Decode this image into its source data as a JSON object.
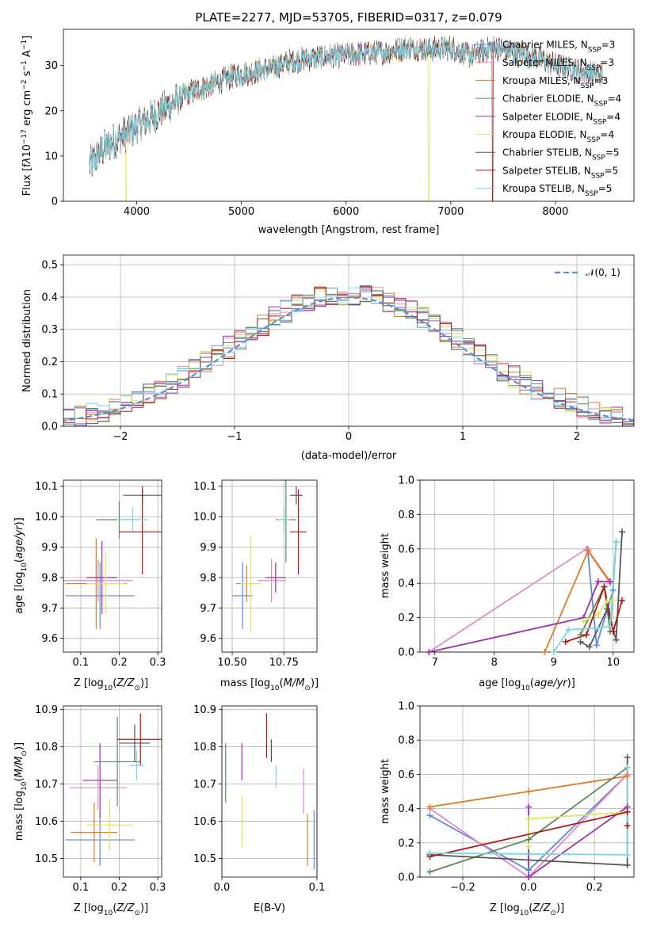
{
  "series_styles": [
    {
      "name": "Chabrier MILES",
      "nssp": "3",
      "color": "#5b8bd9"
    },
    {
      "name": "Salpeter MILES",
      "nssp": "3",
      "color": "#e887c3"
    },
    {
      "name": "Kroupa MILES",
      "nssp": "3",
      "color": "#e07b20"
    },
    {
      "name": "Chabrier ELODIE",
      "nssp": "4",
      "color": "#5a8a5a"
    },
    {
      "name": "Salpeter ELODIE",
      "nssp": "4",
      "color": "#9b2fb0"
    },
    {
      "name": "Kroupa ELODIE",
      "nssp": "4",
      "color": "#dde65a"
    },
    {
      "name": "Chabrier STELIB",
      "nssp": "5",
      "color": "#555555"
    },
    {
      "name": "Salpeter STELIB",
      "nssp": "5",
      "color": "#b01515"
    },
    {
      "name": "Kroupa STELIB",
      "nssp": "5",
      "color": "#79d6e0"
    }
  ],
  "chart_data": [
    {
      "id": "spectrum",
      "type": "line",
      "title": "PLATE=2277, MJD=53705, FIBERID=0317, z=0.079",
      "xlabel": "wavelength [Angstrom, rest frame]",
      "ylabel_parts": [
        "Flux [f",
        "λ",
        "10",
        "−17",
        " erg cm",
        "−2",
        " s",
        "−1",
        " A",
        "−1",
        "]"
      ],
      "xlim": [
        3300,
        8750
      ],
      "ylim": [
        0,
        38
      ],
      "xticks": [
        4000,
        5000,
        6000,
        7000,
        8000
      ],
      "yticks": [
        0,
        10,
        20,
        30
      ],
      "grid": false,
      "legend_position": "right",
      "continuum_points": [
        [
          3550,
          8
        ],
        [
          3700,
          12
        ],
        [
          3900,
          15
        ],
        [
          4100,
          18
        ],
        [
          4300,
          21
        ],
        [
          4500,
          24
        ],
        [
          4700,
          25.5
        ],
        [
          4900,
          27.5
        ],
        [
          5100,
          28.5
        ],
        [
          5300,
          29.5
        ],
        [
          5500,
          31
        ],
        [
          5800,
          32
        ],
        [
          6100,
          32.5
        ],
        [
          6400,
          33
        ],
        [
          6600,
          34
        ],
        [
          6800,
          33.5
        ],
        [
          7000,
          34
        ],
        [
          7200,
          32
        ],
        [
          7400,
          34
        ],
        [
          7600,
          33
        ],
        [
          7800,
          32
        ],
        [
          8000,
          30
        ],
        [
          8200,
          29
        ],
        [
          8400,
          28
        ]
      ],
      "dropouts": [
        {
          "series": "Kroupa ELODIE",
          "x": 3900
        },
        {
          "series": "Kroupa ELODIE",
          "x": 6790
        },
        {
          "series": "Salpeter STELIB",
          "x": 7400
        }
      ]
    },
    {
      "id": "residuals",
      "type": "histogram",
      "xlabel": "(data-model)/error",
      "ylabel": "Normed distribution",
      "xlim": [
        -2.5,
        2.5
      ],
      "ylim": [
        0,
        0.53
      ],
      "xticks": [
        -2,
        -1,
        0,
        1,
        2
      ],
      "yticks": [
        0.0,
        0.1,
        0.2,
        0.3,
        0.4,
        0.5
      ],
      "grid": true,
      "bin_width": 0.1,
      "reference": {
        "name": "𝒩(0, 1)",
        "mean": 0,
        "sigma": 1,
        "color": "#5b8bd9"
      },
      "legend_position": "top-right"
    },
    {
      "id": "age_vs_z",
      "type": "errorbar",
      "xlabel": "Z [log10(Z/Z⊙)]",
      "ylabel": "age  [log10(age/yr)]",
      "xlim": [
        0.055,
        0.31
      ],
      "ylim": [
        9.555,
        10.12
      ],
      "xticks": [
        0.1,
        0.2,
        0.3
      ],
      "yticks": [
        9.6,
        9.7,
        9.8,
        9.9,
        10.0,
        10.1
      ],
      "grid": true,
      "points": [
        {
          "series": "Chabrier MILES",
          "x": 0.15,
          "y": 9.74,
          "xerr": 0.09,
          "yerr": 0.11
        },
        {
          "series": "Salpeter MILES",
          "x": 0.145,
          "y": 9.79,
          "xerr": 0.09,
          "yerr": 0.07
        },
        {
          "series": "Kroupa MILES",
          "x": 0.14,
          "y": 9.78,
          "xerr": 0.08,
          "yerr": 0.15
        },
        {
          "series": "Chabrier ELODIE",
          "x": 0.2,
          "y": 9.99,
          "xerr": 0.06,
          "yerr": 0.06
        },
        {
          "series": "Salpeter ELODIE",
          "x": 0.155,
          "y": 9.8,
          "xerr": 0.04,
          "yerr": 0.12
        },
        {
          "series": "Kroupa ELODIE",
          "x": 0.165,
          "y": 9.78,
          "xerr": 0.05,
          "yerr": 0.1
        },
        {
          "series": "Chabrier STELIB",
          "x": 0.26,
          "y": 10.07,
          "xerr": 0.05,
          "yerr": 0.03
        },
        {
          "series": "Salpeter STELIB",
          "x": 0.26,
          "y": 9.95,
          "xerr": 0.06,
          "yerr": 0.14
        },
        {
          "series": "Kroupa STELIB",
          "x": 0.235,
          "y": 9.99,
          "xerr": 0.04,
          "yerr": 0.04
        }
      ]
    },
    {
      "id": "age_vs_mass",
      "type": "errorbar",
      "xlabel": "mass [log10(M/M⊙)]",
      "ylabel": "",
      "xlim": [
        10.45,
        10.91
      ],
      "ylim": [
        9.555,
        10.12
      ],
      "xticks": [
        10.5,
        10.75
      ],
      "yticks": [
        9.6,
        9.7,
        9.8,
        9.9,
        10.0,
        10.1
      ],
      "grid": true,
      "points": [
        {
          "series": "Chabrier MILES",
          "x": 10.55,
          "y": 9.74,
          "xerr": 0.05,
          "yerr": 0.11
        },
        {
          "series": "Salpeter MILES",
          "x": 10.69,
          "y": 9.79,
          "xerr": 0.07,
          "yerr": 0.07
        },
        {
          "series": "Kroupa MILES",
          "x": 10.57,
          "y": 9.78,
          "xerr": 0.05,
          "yerr": 0.06
        },
        {
          "series": "Chabrier ELODIE",
          "x": 10.76,
          "y": 9.99,
          "xerr": 0.05,
          "yerr": 0.14
        },
        {
          "series": "Salpeter ELODIE",
          "x": 10.71,
          "y": 9.8,
          "xerr": 0.05,
          "yerr": 0.05
        },
        {
          "series": "Kroupa ELODIE",
          "x": 10.59,
          "y": 9.78,
          "xerr": 0.05,
          "yerr": 0.16
        },
        {
          "series": "Chabrier STELIB",
          "x": 10.81,
          "y": 10.07,
          "xerr": 0.03,
          "yerr": 0.03
        },
        {
          "series": "Salpeter STELIB",
          "x": 10.82,
          "y": 9.95,
          "xerr": 0.04,
          "yerr": 0.14
        },
        {
          "series": "Kroupa STELIB",
          "x": 10.75,
          "y": 9.99,
          "xerr": 0.03,
          "yerr": 0.04
        }
      ]
    },
    {
      "id": "weights_vs_age",
      "type": "line",
      "xlabel": "age  [log10(age/yr)]",
      "ylabel": "mass weight",
      "xlim": [
        6.75,
        10.35
      ],
      "ylim": [
        0,
        1
      ],
      "xticks": [
        7,
        8,
        9,
        10
      ],
      "yticks": [
        0.0,
        0.2,
        0.4,
        0.6,
        0.8,
        1.0
      ],
      "grid": true,
      "series": [
        {
          "name": "Chabrier MILES",
          "points": [
            [
              9.57,
              0.6
            ],
            [
              9.72,
              0.04
            ],
            [
              10.0,
              0.36
            ]
          ]
        },
        {
          "name": "Salpeter MILES",
          "points": [
            [
              6.9,
              0.0
            ],
            [
              9.55,
              0.6
            ],
            [
              9.95,
              0.4
            ]
          ]
        },
        {
          "name": "Kroupa MILES",
          "points": [
            [
              8.85,
              0.0
            ],
            [
              9.58,
              0.59
            ],
            [
              9.95,
              0.41
            ]
          ]
        },
        {
          "name": "Chabrier ELODIE",
          "points": [
            [
              9.45,
              0.1
            ],
            [
              9.85,
              0.38
            ],
            [
              9.95,
              0.12
            ],
            [
              10.05,
              0.64
            ]
          ]
        },
        {
          "name": "Salpeter ELODIE",
          "points": [
            [
              6.9,
              0.0
            ],
            [
              9.5,
              0.2
            ],
            [
              9.75,
              0.41
            ],
            [
              9.95,
              0.41
            ]
          ]
        },
        {
          "name": "Kroupa ELODIE",
          "points": [
            [
              9.5,
              0.18
            ],
            [
              9.75,
              0.22
            ],
            [
              9.9,
              0.3
            ],
            [
              10.0,
              0.3
            ]
          ]
        },
        {
          "name": "Chabrier STELIB",
          "points": [
            [
              9.45,
              0.06
            ],
            [
              9.6,
              0.03
            ],
            [
              9.9,
              0.25
            ],
            [
              10.05,
              0.07
            ],
            [
              10.15,
              0.7
            ]
          ]
        },
        {
          "name": "Salpeter STELIB",
          "points": [
            [
              9.2,
              0.06
            ],
            [
              9.55,
              0.1
            ],
            [
              9.85,
              0.38
            ],
            [
              10.0,
              0.12
            ],
            [
              10.15,
              0.3
            ]
          ]
        },
        {
          "name": "Kroupa STELIB",
          "points": [
            [
              9.0,
              0.0
            ],
            [
              9.25,
              0.13
            ],
            [
              9.75,
              0.14
            ],
            [
              9.95,
              0.15
            ],
            [
              10.05,
              0.64
            ]
          ]
        }
      ]
    },
    {
      "id": "mass_vs_z",
      "type": "errorbar",
      "xlabel": "Z [log10(Z/Z⊙)]",
      "ylabel": "mass [log10(M/M⊙)]",
      "xlim": [
        0.055,
        0.31
      ],
      "ylim": [
        10.45,
        10.91
      ],
      "xticks": [
        0.1,
        0.2,
        0.3
      ],
      "yticks": [
        10.5,
        10.6,
        10.7,
        10.8,
        10.9
      ],
      "grid": true,
      "points": [
        {
          "series": "Chabrier MILES",
          "x": 0.15,
          "y": 10.55,
          "xerr": 0.09,
          "yerr": 0.07
        },
        {
          "series": "Salpeter MILES",
          "x": 0.145,
          "y": 10.69,
          "xerr": 0.075,
          "yerr": 0.06
        },
        {
          "series": "Kroupa MILES",
          "x": 0.135,
          "y": 10.57,
          "xerr": 0.06,
          "yerr": 0.08
        },
        {
          "series": "Chabrier ELODIE",
          "x": 0.195,
          "y": 10.76,
          "xerr": 0.06,
          "yerr": 0.12
        },
        {
          "series": "Salpeter ELODIE",
          "x": 0.15,
          "y": 10.71,
          "xerr": 0.045,
          "yerr": 0.1
        },
        {
          "series": "Kroupa ELODIE",
          "x": 0.175,
          "y": 10.59,
          "xerr": 0.06,
          "yerr": 0.07
        },
        {
          "series": "Chabrier STELIB",
          "x": 0.24,
          "y": 10.81,
          "xerr": 0.04,
          "yerr": 0.05
        },
        {
          "series": "Salpeter STELIB",
          "x": 0.255,
          "y": 10.82,
          "xerr": 0.06,
          "yerr": 0.07
        },
        {
          "series": "Kroupa STELIB",
          "x": 0.245,
          "y": 10.75,
          "xerr": 0.02,
          "yerr": 0.04
        }
      ]
    },
    {
      "id": "mass_vs_ebv",
      "type": "errorbar",
      "xlabel": "E(B-V)",
      "ylabel": "",
      "xlim": [
        0.0,
        0.1
      ],
      "ylim": [
        10.45,
        10.91
      ],
      "xticks": [
        0.0,
        0.1
      ],
      "yticks": [
        10.5,
        10.6,
        10.7,
        10.8,
        10.9
      ],
      "grid": true,
      "points": [
        {
          "series": "Chabrier MILES",
          "x": 0.097,
          "y": 10.55,
          "xerr": 0,
          "yerr": 0.08
        },
        {
          "series": "Salpeter MILES",
          "x": 0.086,
          "y": 10.68,
          "xerr": 0,
          "yerr": 0.06
        },
        {
          "series": "Kroupa MILES",
          "x": 0.09,
          "y": 10.55,
          "xerr": 0,
          "yerr": 0.07
        },
        {
          "series": "Chabrier ELODIE",
          "x": 0.004,
          "y": 10.73,
          "xerr": 0,
          "yerr": 0.08
        },
        {
          "series": "Salpeter ELODIE",
          "x": 0.021,
          "y": 10.76,
          "xerr": 0,
          "yerr": 0.05
        },
        {
          "series": "Kroupa ELODIE",
          "x": 0.021,
          "y": 10.6,
          "xerr": 0,
          "yerr": 0.07
        },
        {
          "series": "Chabrier STELIB",
          "x": 0.052,
          "y": 10.79,
          "xerr": 0,
          "yerr": 0.03
        },
        {
          "series": "Salpeter STELIB",
          "x": 0.047,
          "y": 10.83,
          "xerr": 0,
          "yerr": 0.06
        },
        {
          "series": "Kroupa STELIB",
          "x": 0.057,
          "y": 10.72,
          "xerr": 0,
          "yerr": 0.03
        }
      ]
    },
    {
      "id": "weights_vs_z",
      "type": "line",
      "xlabel": "Z [log10(Z/Z⊙)]",
      "ylabel": "mass weight",
      "xlim": [
        -0.33,
        0.32
      ],
      "ylim": [
        0,
        1
      ],
      "xticks": [
        -0.2,
        0.0,
        0.2
      ],
      "yticks": [
        0.0,
        0.2,
        0.4,
        0.6,
        0.8,
        1.0
      ],
      "grid": true,
      "series": [
        {
          "name": "Chabrier MILES",
          "points": [
            [
              -0.3,
              0.36
            ],
            [
              0.0,
              0.04
            ],
            [
              0.3,
              0.6
            ]
          ]
        },
        {
          "name": "Salpeter MILES",
          "points": [
            [
              -0.3,
              0.4
            ],
            [
              0.0,
              0.0
            ],
            [
              0.3,
              0.6
            ]
          ]
        },
        {
          "name": "Kroupa MILES",
          "points": [
            [
              -0.3,
              0.41
            ],
            [
              0.0,
              0.5
            ],
            [
              0.3,
              0.59
            ]
          ]
        },
        {
          "name": "Chabrier ELODIE",
          "points": [
            [
              -0.3,
              0.03
            ],
            [
              0.0,
              0.22
            ],
            [
              0.3,
              0.64
            ]
          ]
        },
        {
          "name": "Salpeter ELODIE",
          "points": [
            [
              0.0,
              0.41
            ],
            [
              0.0,
              0.0
            ],
            [
              0.3,
              0.41
            ]
          ]
        },
        {
          "name": "Kroupa ELODIE",
          "points": [
            [
              0.0,
              0.18
            ],
            [
              0.0,
              0.34
            ],
            [
              0.3,
              0.38
            ]
          ]
        },
        {
          "name": "Chabrier STELIB",
          "points": [
            [
              -0.3,
              0.13
            ],
            [
              0.3,
              0.07
            ],
            [
              0.3,
              0.7
            ]
          ]
        },
        {
          "name": "Salpeter STELIB",
          "points": [
            [
              -0.3,
              0.12
            ],
            [
              0.3,
              0.38
            ],
            [
              0.3,
              0.3
            ]
          ]
        },
        {
          "name": "Kroupa STELIB",
          "points": [
            [
              -0.3,
              0.14
            ],
            [
              0.3,
              0.13
            ],
            [
              0.3,
              0.64
            ]
          ]
        }
      ]
    }
  ]
}
